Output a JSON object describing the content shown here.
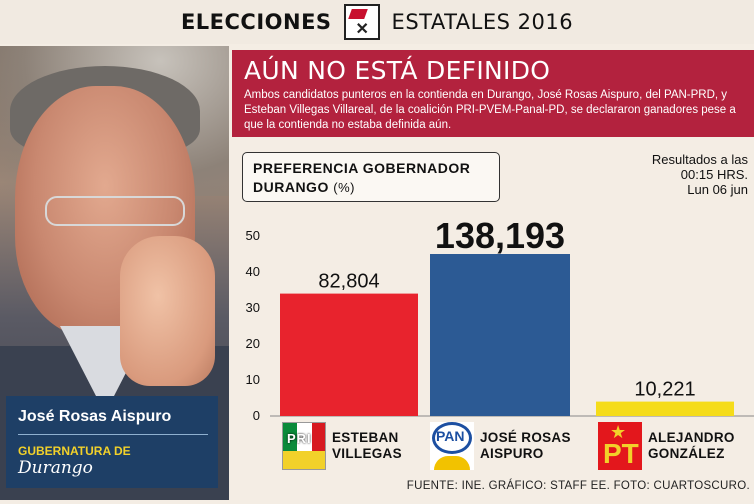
{
  "header": {
    "word1": "ELECCIONES",
    "word2": "ESTATALES 2016",
    "ballot_icon": "ballot-box-icon"
  },
  "photo": {
    "name": "José Rosas Aispuro",
    "subtitle1": "GUBERNATURA DE",
    "subtitle2": "Durango"
  },
  "headline": {
    "title": "AÚN NO ESTÁ DEFINIDO",
    "body": "Ambos candidatos punteros en la contienda en Durango, José Rosas Aispuro, del PAN-PRD, y Esteban Villegas Villareal, de la coalición PRI-PVEM-Panal-PD, se declararon ganadores pese a que la contienda no estaba definida aún."
  },
  "results_note": [
    "Resultados a las",
    "00:15 HRS.",
    "Lun 06 jun"
  ],
  "footer": "FUENTE: INE. GRÁFICO: STAFF EE. FOTO: CUARTOSCURO.",
  "colors": {
    "band": "#b3223e",
    "pri": "#e8232d",
    "pan": "#1f4f8f",
    "pt": "#f5dc1a"
  },
  "chart_data": {
    "type": "bar",
    "title": "PREFERENCIA GOBERNADOR DURANGO",
    "title_unit": "(%)",
    "ylim": [
      0,
      50
    ],
    "yticks": [
      0,
      10,
      20,
      30,
      40,
      50
    ],
    "grid": false,
    "categories": [
      "ESTEBAN VILLEGAS",
      "JOSÉ ROSAS AISPURO",
      "ALEJANDRO GONZÁLEZ"
    ],
    "category_lines": [
      [
        "ESTEBAN",
        "VILLEGAS"
      ],
      [
        "JOSÉ ROSAS",
        "AISPURO"
      ],
      [
        "ALEJANDRO",
        "GONZÁLEZ"
      ]
    ],
    "values": [
      34,
      45,
      4
    ],
    "labels": [
      "82,804",
      "138,193",
      "10,221"
    ],
    "bar_colors": [
      "#e8232d",
      "#2c5a94",
      "#f5dc1a"
    ],
    "logos": [
      "pri-logo-icon",
      "pan-logo-icon",
      "pt-logo-icon"
    ]
  }
}
